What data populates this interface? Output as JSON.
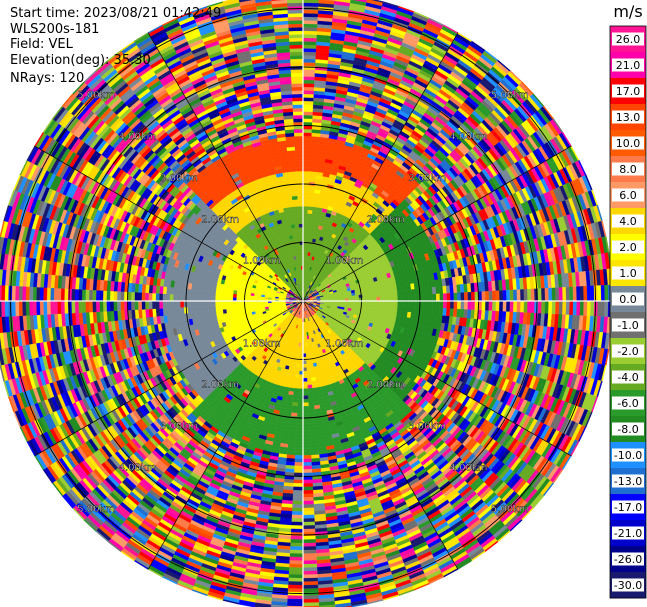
{
  "info": {
    "start_time": "Start time: 2023/08/21 01:42:49",
    "station": "WLS200s-181",
    "field": "Field: VEL",
    "elevation": "Elevation(deg): 35.30",
    "nrays": "NRays: 120"
  },
  "chart_data": {
    "type": "heatmap",
    "projection": "polar-ppi",
    "title": "",
    "range_rings": [
      {
        "value": 1,
        "label": "1.00km"
      },
      {
        "value": 2,
        "label": "2.00km"
      },
      {
        "value": 3,
        "label": "3.00km"
      },
      {
        "value": 4,
        "label": "4.00km"
      },
      {
        "value": 5,
        "label": "5.00km"
      }
    ],
    "azimuth_lines_deg": [
      0,
      30,
      60,
      90,
      120,
      150,
      180,
      210,
      240,
      270,
      300,
      330
    ],
    "ring_label_azimuths_deg": [
      45,
      135,
      225,
      315
    ],
    "max_range_km": 5.3,
    "colorbar": {
      "unit": "m/s",
      "ticks": [
        "26.0",
        "21.0",
        "17.0",
        "13.0",
        "10.0",
        "8.0",
        "6.0",
        "4.0",
        "2.0",
        "1.0",
        "0.0",
        "-1.0",
        "-2.0",
        "-4.0",
        "-6.0",
        "-8.0",
        "-10.0",
        "-13.0",
        "-17.0",
        "-21.0",
        "-26.0",
        "-30.0"
      ],
      "colors": [
        "#ff1493",
        "#ff00aa",
        "#ff0000",
        "#ff4500",
        "#ff5a00",
        "#ff7a4a",
        "#ff9966",
        "#ffd700",
        "#ffff00",
        "#ffe600",
        "#778899",
        "#707070",
        "#9acd32",
        "#66aa22",
        "#2a9a2a",
        "#228b22",
        "#1e90ff",
        "#1f6fd0",
        "#0000ff",
        "#0000cd",
        "#00008b",
        "#191970"
      ]
    },
    "field_pattern": [
      {
        "range_km": [
          0.0,
          0.25
        ],
        "sector": "south",
        "value": 8.0
      },
      {
        "range_km": [
          0.0,
          0.4
        ],
        "sector": "north",
        "value": -4.0
      },
      {
        "range_km": [
          0.3,
          1.5
        ],
        "sector": "south",
        "value": 4.0
      },
      {
        "range_km": [
          0.3,
          1.5
        ],
        "sector": "west",
        "value": 2.0
      },
      {
        "range_km": [
          0.3,
          1.6
        ],
        "sector": "north",
        "value": -4.0
      },
      {
        "range_km": [
          0.3,
          1.6
        ],
        "sector": "east",
        "value": -2.0
      },
      {
        "range_km": [
          1.5,
          2.2
        ],
        "sector": "north",
        "value": 4.0
      },
      {
        "range_km": [
          1.5,
          2.4
        ],
        "sector": "east",
        "value": -8.0
      },
      {
        "range_km": [
          1.5,
          2.6
        ],
        "sector": "south",
        "value": -6.0
      },
      {
        "range_km": [
          1.5,
          2.4
        ],
        "sector": "west",
        "value": 0.0
      },
      {
        "range_km": [
          2.2,
          2.8
        ],
        "sector": "north",
        "value": 13.0
      }
    ]
  }
}
